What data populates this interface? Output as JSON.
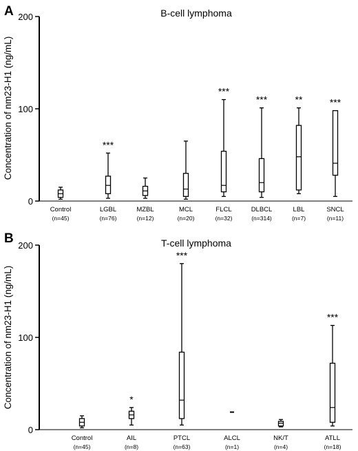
{
  "chart_data": [
    {
      "type": "box",
      "panel_label": "A",
      "title": "B-cell lymphoma",
      "ylabel": "Concentration of nm23-H1 (ng/mL)",
      "ylim": [
        0,
        200
      ],
      "yticks": [
        "0",
        "100",
        "200"
      ],
      "categories": [
        "Control",
        "LGBL",
        "MZBL",
        "MCL",
        "FLCL",
        "DLBCL",
        "LBL",
        "SNCL"
      ],
      "counts": [
        "(n=45)",
        "(n=76)",
        "(n=12)",
        "(n=20)",
        "(n=32)",
        "(n=314)",
        "(n=7)",
        "(n=11)"
      ],
      "significance": [
        "",
        "***",
        "",
        "",
        "***",
        "***",
        "**",
        "***"
      ],
      "boxes": [
        {
          "min": 2,
          "q1": 4,
          "median": 8,
          "q3": 12,
          "max": 15
        },
        {
          "min": 3,
          "q1": 8,
          "median": 17,
          "q3": 27,
          "max": 52
        },
        {
          "min": 3,
          "q1": 6,
          "median": 11,
          "q3": 16,
          "max": 25
        },
        {
          "min": 2,
          "q1": 5,
          "median": 13,
          "q3": 30,
          "max": 65
        },
        {
          "min": 5,
          "q1": 10,
          "median": 17,
          "q3": 54,
          "max": 110
        },
        {
          "min": 4,
          "q1": 10,
          "median": 20,
          "q3": 46,
          "max": 101
        },
        {
          "min": 8,
          "q1": 12,
          "median": 48,
          "q3": 82,
          "max": 101
        },
        {
          "min": 5,
          "q1": 28,
          "median": 41,
          "q3": 98,
          "max": 98
        }
      ]
    },
    {
      "type": "box",
      "panel_label": "B",
      "title": "T-cell lymphoma",
      "ylabel": "Concentration of nm23-H1 (ng/mL)",
      "ylim": [
        0,
        200
      ],
      "yticks": [
        "0",
        "100",
        "200"
      ],
      "categories": [
        "Control",
        "AIL",
        "PTCL",
        "ALCL",
        "NK/T",
        "ATLL"
      ],
      "counts": [
        "(n=45)",
        "(n=8)",
        "(n=63)",
        "(n=1)",
        "(n=4)",
        "(n=18)"
      ],
      "significance": [
        "",
        "*",
        "***",
        "",
        "",
        "***"
      ],
      "boxes": [
        {
          "min": 2,
          "q1": 4,
          "median": 8,
          "q3": 12,
          "max": 15
        },
        {
          "min": 5,
          "q1": 12,
          "median": 16,
          "q3": 20,
          "max": 24
        },
        {
          "min": 5,
          "q1": 12,
          "median": 32,
          "q3": 84,
          "max": 180
        },
        {
          "min": 19,
          "q1": 19,
          "median": 19,
          "q3": 19,
          "max": 19
        },
        {
          "min": 3,
          "q1": 4,
          "median": 7,
          "q3": 9,
          "max": 11
        },
        {
          "min": 4,
          "q1": 8,
          "median": 24,
          "q3": 72,
          "max": 113
        }
      ]
    }
  ]
}
